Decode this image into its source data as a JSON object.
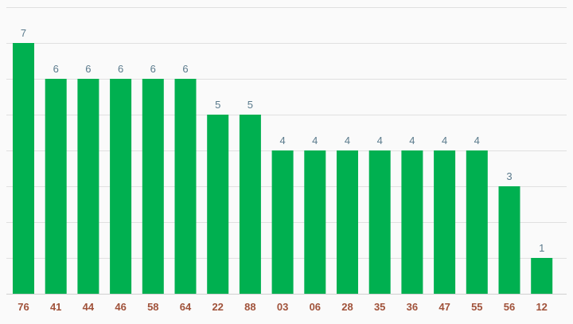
{
  "chart_data": {
    "type": "bar",
    "categories": [
      "76",
      "41",
      "44",
      "46",
      "58",
      "64",
      "22",
      "88",
      "03",
      "06",
      "28",
      "35",
      "36",
      "47",
      "55",
      "56",
      "12"
    ],
    "values": [
      7,
      6,
      6,
      6,
      6,
      6,
      5,
      5,
      4,
      4,
      4,
      4,
      4,
      4,
      4,
      3,
      1
    ],
    "title": "",
    "xlabel": "",
    "ylabel": "",
    "ylim": [
      0,
      8
    ],
    "grid": true,
    "legend": "none",
    "colors": {
      "bar": "#00b050",
      "value_label": "#5a7a8c",
      "category_label": "#a0523a",
      "gridline": "#e0e0e0",
      "background": "#fafafa"
    }
  }
}
